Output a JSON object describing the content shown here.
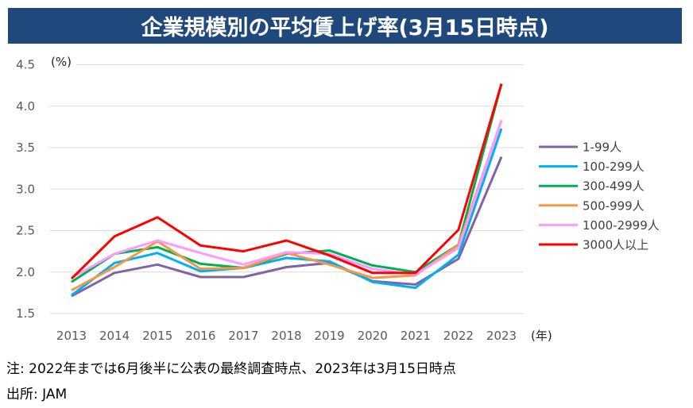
{
  "title": "企業規模別の平均賃上げ率(3月15日時点)",
  "notes": {
    "note": "注: 2022年までは6月後半に公表の最終調査時点、2023年は3月15日時点",
    "source": "出所: JAM"
  },
  "colors": {
    "title_bg": "#1f497d",
    "grid": "#d9d9d9"
  },
  "chart_data": {
    "type": "line",
    "title": "企業規模別の平均賃上げ率(3月15日時点)",
    "xlabel": "(年)",
    "ylabel": "(%)",
    "x": [
      "2013",
      "2014",
      "2015",
      "2016",
      "2017",
      "2018",
      "2019",
      "2020",
      "2021",
      "2022",
      "2023"
    ],
    "ylim": [
      1.5,
      4.5
    ],
    "yticks": [
      "1.5",
      "2.0",
      "2.5",
      "3.0",
      "3.5",
      "4.0",
      "4.5"
    ],
    "grid": true,
    "legend_position": "right",
    "series": [
      {
        "name": "1-99人",
        "color": "#8064a2",
        "values": [
          1.71,
          1.99,
          2.09,
          1.94,
          1.94,
          2.06,
          2.11,
          1.89,
          1.85,
          2.16,
          3.39
        ]
      },
      {
        "name": "100-299人",
        "color": "#00b0f0",
        "values": [
          1.72,
          2.11,
          2.23,
          2.01,
          2.05,
          2.17,
          2.13,
          1.88,
          1.81,
          2.21,
          3.73
        ]
      },
      {
        "name": "300-499人",
        "color": "#00b050",
        "values": [
          1.88,
          2.22,
          2.3,
          2.1,
          2.05,
          2.22,
          2.26,
          2.08,
          2.0,
          2.33,
          4.27
        ]
      },
      {
        "name": "500-999人",
        "color": "#f79646",
        "values": [
          1.78,
          2.06,
          2.37,
          2.04,
          2.05,
          2.23,
          2.09,
          1.93,
          1.96,
          2.33,
          3.83
        ]
      },
      {
        "name": "1000-2999人",
        "color": "#ff99ff",
        "values": [
          1.93,
          2.22,
          2.38,
          2.23,
          2.09,
          2.24,
          2.22,
          2.04,
          1.97,
          2.29,
          3.83
        ]
      },
      {
        "name": "3000人以上",
        "color": "#ff0000",
        "values": [
          1.92,
          2.43,
          2.66,
          2.32,
          2.25,
          2.38,
          2.2,
          1.99,
          1.99,
          2.51,
          4.27
        ]
      }
    ]
  }
}
